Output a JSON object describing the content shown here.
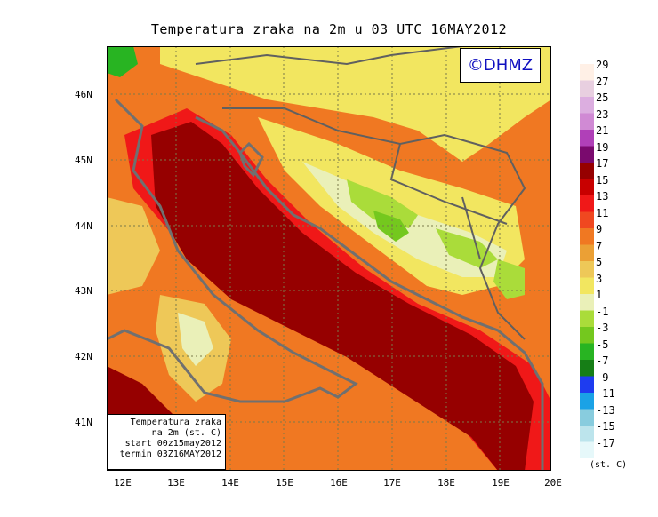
{
  "title": "Temperatura zraka na 2m u 03 UTC 16MAY2012",
  "logo_text": "©DHMZ",
  "info_box": {
    "line1": "Temperatura zraka",
    "line2": "na 2m (st. C)",
    "line3": "start 00z15may2012",
    "line4": "termin 03Z16MAY2012"
  },
  "lat_labels": [
    "46N",
    "45N",
    "44N",
    "43N",
    "42N",
    "41N"
  ],
  "lon_labels": [
    "12E",
    "13E",
    "14E",
    "15E",
    "16E",
    "17E",
    "18E",
    "19E",
    "20E"
  ],
  "legend": {
    "labels": [
      "29",
      "27",
      "25",
      "23",
      "21",
      "19",
      "17",
      "15",
      "13",
      "11",
      "9",
      "7",
      "5",
      "3",
      "1",
      "-1",
      "-3",
      "-5",
      "-7",
      "-9",
      "-11",
      "-13",
      "-15",
      "-17"
    ],
    "colors": [
      "#fff0e6",
      "#e8cfe0",
      "#dcaee0",
      "#d08ad4",
      "#b040b8",
      "#7a0a6e",
      "#960000",
      "#c80000",
      "#f01818",
      "#f04820",
      "#f07822",
      "#eba035",
      "#eec858",
      "#f2e660",
      "#eaf0b8",
      "#aadc3a",
      "#74c81e",
      "#28b422",
      "#167e16",
      "#1e3cf0",
      "#1aa2e6",
      "#88ccde",
      "#bce4ec",
      "#e6f8fa"
    ],
    "unit": "(st. C)"
  }
}
